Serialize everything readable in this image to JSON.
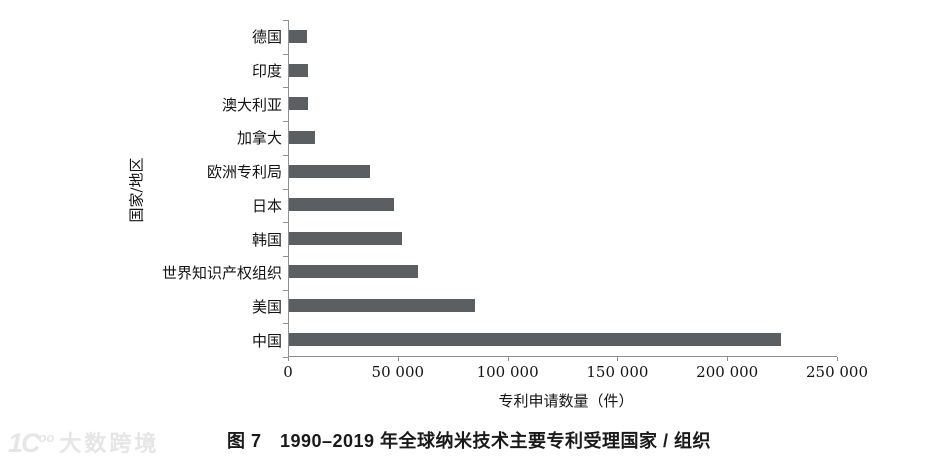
{
  "chart_data": {
    "type": "bar",
    "orientation": "horizontal",
    "title": "图 7　1990–2019 年全球纳米技术主要专利受理国家 / 组织",
    "xlabel": "专利申请数量（件）",
    "ylabel": "国家/地区",
    "categories": [
      "德国",
      "印度",
      "澳大利亚",
      "加拿大",
      "欧洲专利局",
      "日本",
      "韩国",
      "世界知识产权组织",
      "美国",
      "中国"
    ],
    "values": [
      8000,
      8700,
      8500,
      12000,
      37000,
      48000,
      51500,
      59000,
      85000,
      224500
    ],
    "xlim": [
      0,
      250000
    ],
    "x_tick_values": [
      0,
      50000,
      100000,
      150000,
      200000,
      250000
    ],
    "x_tick_labels": [
      "0",
      "50 000",
      "100 000",
      "150 000",
      "200 000",
      "250 000"
    ],
    "grid": false,
    "legend": null,
    "bar_color": "#5c5f61",
    "axis_color": "#8f8f8f"
  },
  "caption": "图 7　1990–2019 年全球纳米技术主要专利受理国家 / 组织",
  "watermark": {
    "brand": "大数跨境",
    "logo_icon": "ten-to-the-100-logo"
  }
}
